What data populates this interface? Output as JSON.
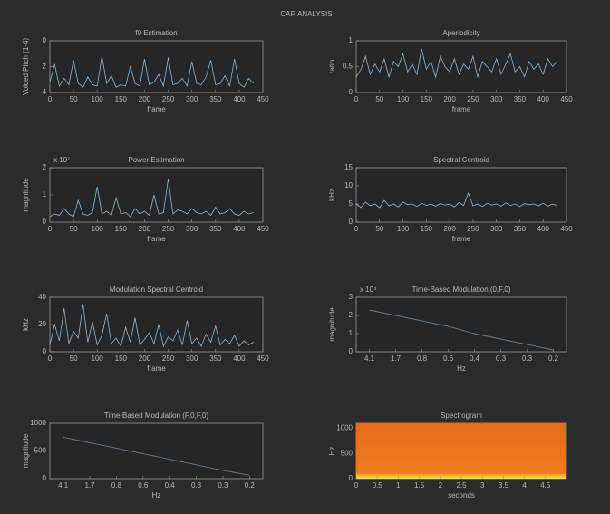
{
  "title": "CAR ANALYSIS",
  "chart_data": [
    {
      "type": "line",
      "title": "f0 Estimation",
      "xlabel": "frame",
      "ylabel": "Voiced Pitch (1-4)",
      "x": [
        0,
        10,
        20,
        30,
        40,
        50,
        60,
        70,
        80,
        90,
        100,
        110,
        120,
        130,
        140,
        150,
        160,
        170,
        180,
        190,
        200,
        210,
        220,
        230,
        240,
        250,
        260,
        270,
        280,
        290,
        300,
        310,
        320,
        330,
        340,
        350,
        360,
        370,
        380,
        390,
        400,
        410,
        420,
        430
      ],
      "values": [
        3.2,
        1.8,
        3.5,
        2.9,
        3.4,
        1.5,
        3.3,
        3.6,
        2.8,
        3.4,
        3.5,
        1.2,
        3.3,
        2.7,
        3.6,
        3.4,
        3.5,
        2.0,
        3.3,
        3.5,
        1.4,
        3.4,
        3.2,
        2.6,
        3.5,
        1.3,
        3.4,
        3.3,
        2.9,
        3.5,
        1.6,
        3.3,
        3.4,
        2.8,
        1.5,
        3.4,
        3.3,
        2.7,
        3.5,
        1.4,
        3.3,
        3.6,
        2.9,
        3.3
      ],
      "color": "#8ab8d8",
      "xlim": [
        0,
        450
      ],
      "xticks": [
        0,
        50,
        100,
        150,
        200,
        250,
        300,
        350,
        400,
        450
      ],
      "ylim": [
        4,
        0
      ],
      "yticks": [
        0,
        2,
        4
      ]
    },
    {
      "type": "line",
      "title": "Aperiodicity",
      "xlabel": "frame",
      "ylabel": "ratio",
      "x": [
        0,
        10,
        20,
        30,
        40,
        50,
        60,
        70,
        80,
        90,
        100,
        110,
        120,
        130,
        140,
        150,
        160,
        170,
        180,
        190,
        200,
        210,
        220,
        230,
        240,
        250,
        260,
        270,
        280,
        290,
        300,
        310,
        320,
        330,
        340,
        350,
        360,
        370,
        380,
        390,
        400,
        410,
        420,
        430
      ],
      "values": [
        0.3,
        0.45,
        0.7,
        0.35,
        0.55,
        0.4,
        0.65,
        0.3,
        0.6,
        0.5,
        0.75,
        0.4,
        0.55,
        0.35,
        0.85,
        0.45,
        0.6,
        0.3,
        0.7,
        0.5,
        0.4,
        0.65,
        0.35,
        0.55,
        0.45,
        0.7,
        0.3,
        0.6,
        0.5,
        0.4,
        0.65,
        0.35,
        0.55,
        0.75,
        0.4,
        0.5,
        0.3,
        0.6,
        0.45,
        0.55,
        0.35,
        0.65,
        0.5,
        0.6
      ],
      "color": "#8ab8d8",
      "xlim": [
        0,
        450
      ],
      "xticks": [
        0,
        50,
        100,
        150,
        200,
        250,
        300,
        350,
        400,
        450
      ],
      "ylim": [
        0,
        1
      ],
      "yticks": [
        0,
        0.5,
        1
      ]
    },
    {
      "type": "line",
      "title": "Power Estimation",
      "xlabel": "frame",
      "ylabel": "magnitude",
      "exponent": "x 10⁷",
      "x": [
        0,
        10,
        20,
        30,
        40,
        50,
        60,
        70,
        80,
        90,
        100,
        110,
        120,
        130,
        140,
        150,
        160,
        170,
        180,
        190,
        200,
        210,
        220,
        230,
        240,
        250,
        260,
        270,
        280,
        290,
        300,
        310,
        320,
        330,
        340,
        350,
        360,
        370,
        380,
        390,
        400,
        410,
        420,
        430
      ],
      "values": [
        0.2,
        0.3,
        0.25,
        0.5,
        0.3,
        0.2,
        0.8,
        0.3,
        0.25,
        0.35,
        1.3,
        0.3,
        0.4,
        0.25,
        0.9,
        0.3,
        0.35,
        0.2,
        0.5,
        0.3,
        0.4,
        0.25,
        1.0,
        0.3,
        0.35,
        1.6,
        0.3,
        0.45,
        0.4,
        0.3,
        0.5,
        0.35,
        0.3,
        0.4,
        0.25,
        0.55,
        0.3,
        0.35,
        0.5,
        0.3,
        0.25,
        0.4,
        0.3,
        0.35
      ],
      "color": "#8ab8d8",
      "xlim": [
        0,
        450
      ],
      "xticks": [
        0,
        50,
        100,
        150,
        200,
        250,
        300,
        350,
        400,
        450
      ],
      "ylim": [
        0,
        2
      ],
      "yticks": [
        0,
        1,
        2
      ]
    },
    {
      "type": "line",
      "title": "Spectral Centroid",
      "xlabel": "frame",
      "ylabel": "kHz",
      "x": [
        0,
        10,
        20,
        30,
        40,
        50,
        60,
        70,
        80,
        90,
        100,
        110,
        120,
        130,
        140,
        150,
        160,
        170,
        180,
        190,
        200,
        210,
        220,
        230,
        240,
        250,
        260,
        270,
        280,
        290,
        300,
        310,
        320,
        330,
        340,
        350,
        360,
        370,
        380,
        390,
        400,
        410,
        420,
        430
      ],
      "values": [
        5,
        4,
        5.5,
        4.5,
        5,
        4,
        6,
        4.5,
        5,
        4.2,
        5.5,
        4.8,
        5,
        4.3,
        5.2,
        4.6,
        5,
        4.4,
        5.1,
        4.7,
        5,
        4.2,
        5.4,
        4.6,
        8,
        4.5,
        5,
        4.3,
        5.2,
        4.7,
        5,
        4.4,
        5.3,
        4.6,
        5,
        4.3,
        5.1,
        4.8,
        5,
        4.5,
        5.2,
        4.4,
        5,
        4.6
      ],
      "color": "#8ab8d8",
      "xlim": [
        0,
        450
      ],
      "xticks": [
        0,
        50,
        100,
        150,
        200,
        250,
        300,
        350,
        400,
        450
      ],
      "ylim": [
        0,
        15
      ],
      "yticks": [
        0,
        5,
        10,
        15
      ]
    },
    {
      "type": "line",
      "title": "Modulation Spectral Centroid",
      "xlabel": "frame",
      "ylabel": "kHz",
      "x": [
        0,
        10,
        20,
        30,
        40,
        50,
        60,
        70,
        80,
        90,
        100,
        110,
        120,
        130,
        140,
        150,
        160,
        170,
        180,
        190,
        200,
        210,
        220,
        230,
        240,
        250,
        260,
        270,
        280,
        290,
        300,
        310,
        320,
        330,
        340,
        350,
        360,
        370,
        380,
        390,
        400,
        410,
        420,
        430
      ],
      "values": [
        5,
        20,
        8,
        32,
        6,
        15,
        10,
        35,
        7,
        22,
        5,
        12,
        28,
        6,
        10,
        4,
        18,
        7,
        25,
        5,
        9,
        14,
        6,
        20,
        4,
        11,
        8,
        16,
        5,
        23,
        6,
        10,
        4,
        13,
        7,
        19,
        5,
        9,
        6,
        12,
        4,
        8,
        5,
        7
      ],
      "color": "#8ab8d8",
      "xlim": [
        0,
        450
      ],
      "xticks": [
        0,
        50,
        100,
        150,
        200,
        250,
        300,
        350,
        400,
        450
      ],
      "ylim": [
        0,
        40
      ],
      "yticks": [
        0,
        20,
        40
      ]
    },
    {
      "type": "category-line",
      "title": "Time-Based Modulation (0,F,0)",
      "xlabel": "Hz",
      "ylabel": "magnitude",
      "exponent": "x 10⁴",
      "categories": [
        "4.1",
        "1.7",
        "0.8",
        "0.6",
        "0.4",
        "0.3",
        "0.3",
        "0.2"
      ],
      "values": [
        2.3,
        2.0,
        1.7,
        1.4,
        1.0,
        0.7,
        0.4,
        0.1
      ],
      "color": "#6a7a8a",
      "ylim": [
        0,
        3
      ],
      "yticks": [
        0,
        1,
        2,
        3
      ]
    },
    {
      "type": "category-line",
      "title": "Time-Based Modulation (F,0,F,0)",
      "xlabel": "Hz",
      "ylabel": "magnitude",
      "categories": [
        "4.1",
        "1.7",
        "0.8",
        "0.6",
        "0.4",
        "0.3",
        "0.3",
        "0.2"
      ],
      "values": [
        750,
        650,
        550,
        450,
        350,
        250,
        150,
        60
      ],
      "color": "#6a7a8a",
      "ylim": [
        0,
        1000
      ],
      "yticks": [
        0,
        500,
        1000
      ]
    },
    {
      "type": "spectrogram",
      "title": "Spectrogram",
      "xlabel": "seconds",
      "ylabel": "Hz",
      "xlim": [
        0,
        5
      ],
      "xticks": [
        0,
        0.5,
        1,
        1.5,
        2,
        2.5,
        3,
        3.5,
        4,
        4.5
      ],
      "ylim": [
        0,
        1100
      ],
      "yticks": [
        0,
        500,
        1000
      ]
    }
  ]
}
